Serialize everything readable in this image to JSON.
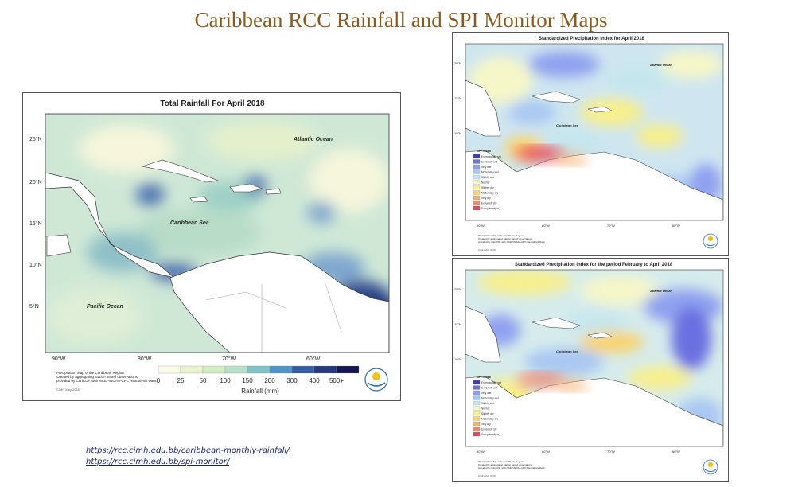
{
  "slide": {
    "title": "Caribbean RCC Rainfall and SPI Monitor Maps"
  },
  "rainfall_map": {
    "title": "Total Rainfall For April 2018",
    "labels": {
      "atlantic": "Atlantic Ocean",
      "caribbean": "Caribbean Sea",
      "pacific": "Pacific Ocean"
    },
    "lat_ticks": [
      "25°N",
      "20°N",
      "15°N",
      "10°N",
      "5°N"
    ],
    "lon_ticks": [
      "90°W",
      "80°W",
      "70°W",
      "60°W"
    ],
    "legend_title": "Rainfall (mm)",
    "legend_ticks": [
      "0",
      "25",
      "50",
      "100",
      "150",
      "200",
      "300",
      "400",
      "500+"
    ],
    "legend_colors": [
      "#fbfbe6",
      "#e9f2cf",
      "#d3ecc4",
      "#b8e0c8",
      "#7fc4c6",
      "#4c93c7",
      "#345fa8",
      "#24377f",
      "#13164f"
    ],
    "footnote_lines": [
      "Precipitation Map of the Caribbean Region",
      "Created by aggregating station based observations",
      "provided by CariCOF, with NCEP/NOAA-CPC Reanalysis Data."
    ],
    "stamp": "CIMH May 2018",
    "colors": {
      "sea_base": "#cfe8d6",
      "land": "#ffffff",
      "wet": "#4c6fb0",
      "dry": "#f6f6dc"
    }
  },
  "spi_map_1": {
    "title": "Standardized Precipitation Index for April 2018",
    "labels": {
      "atlantic": "Atlantic Ocean",
      "caribbean": "Caribbean Sea"
    },
    "lat_ticks": [
      "20°N",
      "15°N",
      "10°N"
    ],
    "lon_ticks": [
      "90°W",
      "80°W",
      "70°W",
      "60°W"
    ],
    "legend_title": "SPI Index",
    "legend_items": [
      "Exceptionally wet",
      "Extremely wet",
      "Very wet",
      "Moderately wet",
      "Slightly wet",
      "Normal",
      "Slightly dry",
      "Moderately dry",
      "Very dry",
      "Extremely dry",
      "Exceptionally dry"
    ],
    "footnote_lines": [
      "Precipitation Map of the Caribbean Region",
      "Created by aggregating station based observations",
      "provided by CariCOF, with NCEP/NOAA-CPC Reanalysis Data."
    ],
    "stamp": "CIMH May 2018"
  },
  "spi_map_2": {
    "title": "Standardized Precipitation Index for the period February to April 2018",
    "labels": {
      "atlantic": "Atlantic Ocean",
      "caribbean": "Caribbean Sea"
    },
    "lat_ticks": [
      "20°N",
      "15°N",
      "10°N"
    ],
    "lon_ticks": [
      "90°W",
      "80°W",
      "70°W",
      "60°W"
    ],
    "legend_title": "SPI Index",
    "legend_items": [
      "Exceptionally wet",
      "Extremely wet",
      "Very wet",
      "Moderately wet",
      "Slightly wet",
      "Normal",
      "Slightly dry",
      "Moderately dry",
      "Very dry",
      "Extremely dry",
      "Exceptionally dry"
    ],
    "footnote_lines": [
      "Precipitation Map of the Caribbean Region",
      "Created by aggregating station based observations",
      "provided by CariCOF, with NCEP/NOAA-CPC Reanalysis Data."
    ],
    "stamp": "CIMH May 2018"
  },
  "spi_colors": [
    "#3a3fb0",
    "#6a6fe0",
    "#8fa0f0",
    "#a9c7f2",
    "#c6e6ee",
    "#f6f7c8",
    "#f8ef8c",
    "#f9d36e",
    "#f8b070",
    "#f4886e",
    "#e8475b"
  ],
  "links": [
    "https://rcc.cimh.edu.bb/caribbean-monthly-rainfall/",
    "https://rcc.cimh.edu.bb/spi-monitor/"
  ]
}
